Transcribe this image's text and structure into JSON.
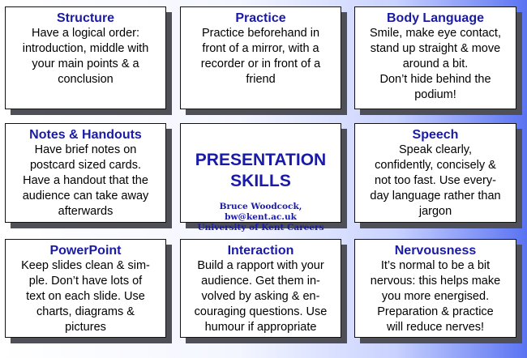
{
  "cards": [
    {
      "title": "Structure",
      "lines": [
        "Have a logical order:",
        "introduction, middle with",
        "your main points & a",
        "conclusion"
      ]
    },
    {
      "title": "Practice",
      "lines": [
        "Practice beforehand in",
        "front of a mirror, with a",
        "recorder or in front of a",
        "friend"
      ]
    },
    {
      "title": "Body Language",
      "lines": [
        "Smile, make eye contact,",
        "stand up straight & move",
        "around a bit.",
        "Don’t hide behind the",
        "podium!"
      ]
    },
    {
      "title": "Notes & Handouts",
      "lines": [
        "Have brief notes on",
        "postcard sized cards.",
        "Have a handout that the",
        "audience can take away",
        "afterwards"
      ]
    },
    {
      "title": "Speech",
      "lines": [
        "Speak clearly,",
        "confidently, concisely &",
        "not too fast. Use every-",
        "day language rather than",
        "jargon"
      ]
    },
    {
      "title": "PowerPoint",
      "lines": [
        "Keep slides clean & sim-",
        "ple. Don’t have lots of",
        "text on each slide. Use",
        "charts, diagrams &",
        "pictures"
      ]
    },
    {
      "title": "Interaction",
      "lines": [
        "Build a rapport with your",
        "audience. Get them in-",
        "volved by asking & en-",
        "couraging questions. Use",
        "humour if appropriate"
      ]
    },
    {
      "title": "Nervousness",
      "lines": [
        "It’s normal to be a bit",
        "nervous: this helps make",
        "you more energised.",
        "Preparation & practice",
        "will reduce nerves!"
      ]
    }
  ],
  "center": {
    "title_line1": "PRESENTATION",
    "title_line2": "SKILLS",
    "credit_line1": "Bruce Woodcock, bw@kent.ac.uk",
    "credit_line2": "University of Kent Careers"
  }
}
